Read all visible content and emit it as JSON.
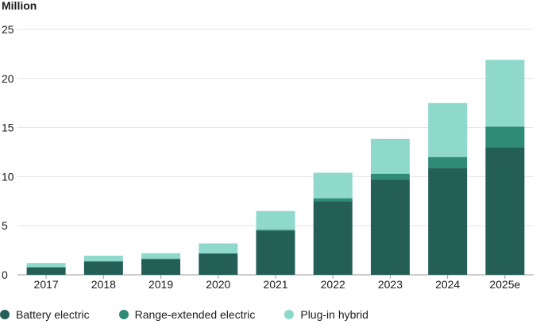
{
  "chart_data": {
    "type": "bar",
    "stacked": true,
    "unit_label": "Million",
    "categories": [
      "2017",
      "2018",
      "2019",
      "2020",
      "2021",
      "2022",
      "2023",
      "2024",
      "2025e"
    ],
    "series": [
      {
        "name": "Battery electric",
        "color": "#235e57",
        "values": [
          0.75,
          1.35,
          1.6,
          2.15,
          4.5,
          7.5,
          9.7,
          10.9,
          13.0
        ]
      },
      {
        "name": "Range-extended electric",
        "color": "#2f8a78",
        "values": [
          0.05,
          0.05,
          0.05,
          0.05,
          0.1,
          0.3,
          0.6,
          1.1,
          2.1
        ]
      },
      {
        "name": "Plug-in hybrid",
        "color": "#8ed9cb",
        "values": [
          0.4,
          0.55,
          0.55,
          1.0,
          1.9,
          2.6,
          3.55,
          5.5,
          6.8
        ]
      }
    ],
    "yticks": [
      0,
      5,
      10,
      15,
      20,
      25
    ],
    "ylim": [
      0,
      25
    ],
    "grid": true,
    "legend_position": "bottom-left"
  }
}
